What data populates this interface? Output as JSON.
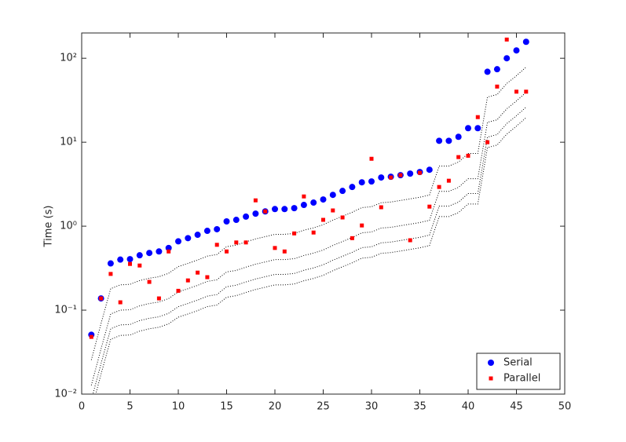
{
  "chart_data": {
    "type": "scatter",
    "ylabel": "Time (s)",
    "y_scale": "log",
    "legend_position": "southeast",
    "xlim": [
      0,
      50
    ],
    "xticks": [
      0,
      5,
      10,
      15,
      20,
      25,
      30,
      35,
      40,
      45,
      50
    ],
    "ylim": [
      0.01,
      200
    ],
    "yticks": [
      {
        "value": 0.01,
        "label": "10⁻²"
      },
      {
        "value": 0.1,
        "label": "10⁻¹"
      },
      {
        "value": 1,
        "label": "10⁰"
      },
      {
        "value": 10,
        "label": "10¹"
      },
      {
        "value": 100,
        "label": "10²"
      }
    ],
    "x": [
      1,
      2,
      3,
      4,
      5,
      6,
      7,
      8,
      9,
      10,
      11,
      12,
      13,
      14,
      15,
      16,
      17,
      18,
      19,
      20,
      21,
      22,
      23,
      24,
      25,
      26,
      27,
      28,
      29,
      30,
      31,
      32,
      33,
      34,
      35,
      36,
      37,
      38,
      39,
      40,
      41,
      42,
      43,
      44,
      45,
      46
    ],
    "series": [
      {
        "name": "Serial",
        "color": "#0000ff",
        "marker": "circle",
        "values": [
          0.051,
          0.138,
          0.36,
          0.4,
          0.405,
          0.45,
          0.48,
          0.5,
          0.55,
          0.66,
          0.72,
          0.79,
          0.88,
          0.92,
          1.14,
          1.19,
          1.3,
          1.41,
          1.5,
          1.6,
          1.6,
          1.64,
          1.79,
          1.91,
          2.08,
          2.36,
          2.63,
          2.93,
          3.33,
          3.41,
          3.8,
          3.88,
          4.05,
          4.23,
          4.42,
          4.7,
          10.4,
          10.4,
          11.6,
          14.7,
          14.7,
          69,
          74,
          100,
          124,
          157
        ]
      },
      {
        "name": "Parallel",
        "color": "#ff0000",
        "marker": "square",
        "values": [
          0.048,
          0.138,
          0.27,
          0.124,
          0.355,
          0.34,
          0.217,
          0.138,
          0.5,
          0.17,
          0.226,
          0.28,
          0.247,
          0.6,
          0.5,
          0.64,
          0.64,
          2.03,
          1.5,
          0.55,
          0.5,
          0.82,
          2.26,
          0.84,
          1.19,
          1.54,
          1.27,
          0.72,
          1.02,
          6.35,
          1.68,
          3.8,
          4.05,
          0.68,
          4.32,
          1.71,
          2.93,
          3.48,
          6.65,
          6.9,
          19.9,
          10.0,
          46,
          167,
          40,
          40
        ]
      }
    ],
    "reference_lines": [
      {
        "color": "#000000",
        "style": "dotted",
        "values": [
          0.0255,
          0.069,
          0.18,
          0.2,
          0.203,
          0.225,
          0.24,
          0.25,
          0.275,
          0.33,
          0.36,
          0.395,
          0.44,
          0.46,
          0.57,
          0.595,
          0.65,
          0.705,
          0.75,
          0.8,
          0.8,
          0.82,
          0.895,
          0.955,
          1.04,
          1.18,
          1.315,
          1.465,
          1.665,
          1.705,
          1.9,
          1.94,
          2.025,
          2.115,
          2.21,
          2.35,
          5.2,
          5.2,
          5.8,
          7.35,
          7.35,
          34.5,
          37,
          50,
          62,
          78.5
        ]
      },
      {
        "color": "#000000",
        "style": "dotted",
        "values": [
          0.01275,
          0.0345,
          0.09,
          0.1,
          0.101,
          0.1125,
          0.12,
          0.125,
          0.1375,
          0.165,
          0.18,
          0.1975,
          0.22,
          0.23,
          0.285,
          0.2975,
          0.325,
          0.3525,
          0.375,
          0.4,
          0.4,
          0.41,
          0.4475,
          0.4775,
          0.52,
          0.59,
          0.6575,
          0.7325,
          0.8325,
          0.8525,
          0.95,
          0.97,
          1.0125,
          1.0575,
          1.105,
          1.175,
          2.6,
          2.6,
          2.9,
          3.675,
          3.675,
          17.25,
          18.5,
          25,
          31,
          39.25
        ]
      },
      {
        "color": "#000000",
        "style": "dotted",
        "values": [
          0.0085,
          0.023,
          0.06,
          0.0667,
          0.0675,
          0.075,
          0.08,
          0.0833,
          0.0917,
          0.11,
          0.12,
          0.1317,
          0.1467,
          0.1533,
          0.19,
          0.1983,
          0.2167,
          0.235,
          0.25,
          0.2667,
          0.2667,
          0.2733,
          0.2983,
          0.3183,
          0.3467,
          0.3933,
          0.4383,
          0.4883,
          0.555,
          0.5683,
          0.6333,
          0.6467,
          0.675,
          0.705,
          0.7367,
          0.7833,
          1.733,
          1.733,
          1.933,
          2.45,
          2.45,
          11.5,
          12.33,
          16.67,
          20.67,
          26.17
        ]
      },
      {
        "color": "#000000",
        "style": "dotted",
        "values": [
          0.006375,
          0.01725,
          0.045,
          0.05,
          0.0506,
          0.05625,
          0.06,
          0.0625,
          0.06875,
          0.0825,
          0.09,
          0.09875,
          0.11,
          0.115,
          0.1425,
          0.14875,
          0.1625,
          0.17625,
          0.1875,
          0.2,
          0.2,
          0.205,
          0.22375,
          0.23875,
          0.26,
          0.295,
          0.32875,
          0.36625,
          0.41625,
          0.42625,
          0.475,
          0.485,
          0.50625,
          0.52875,
          0.5525,
          0.5875,
          1.3,
          1.3,
          1.45,
          1.8375,
          1.8375,
          8.625,
          9.25,
          12.5,
          15.5,
          19.625
        ]
      }
    ]
  }
}
